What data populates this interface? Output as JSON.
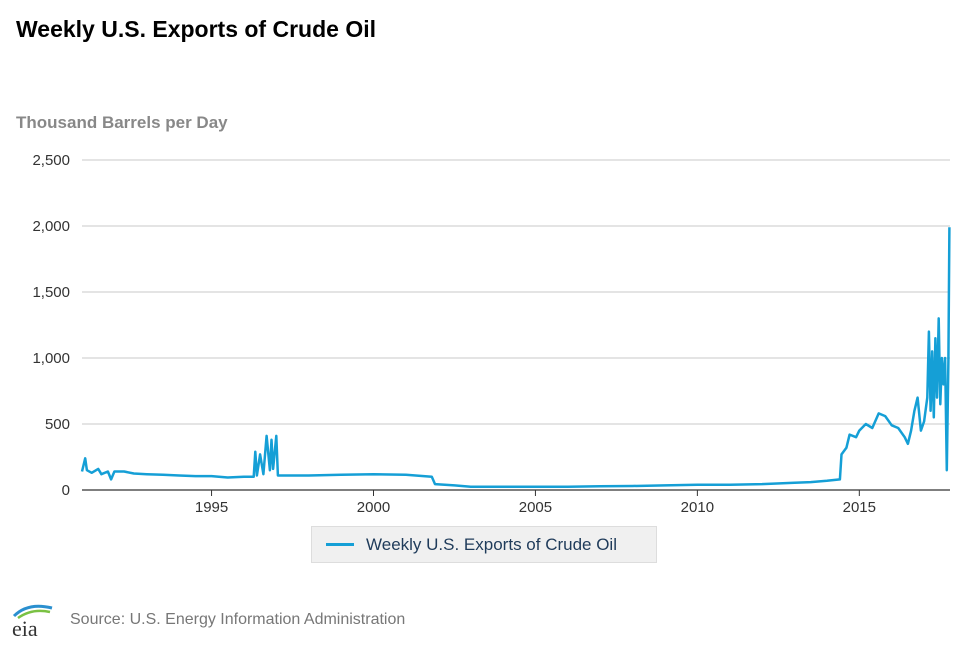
{
  "title": "Weekly U.S. Exports of Crude Oil",
  "ylabel": "Thousand Barrels per Day",
  "source": "Source: U.S. Energy Information Administration",
  "logo_text": "eia",
  "colors": {
    "series": "#159fd6",
    "grid": "#c8c8c8",
    "axis": "#333333"
  },
  "chart_data": {
    "type": "line",
    "title": "Weekly U.S. Exports of Crude Oil",
    "ylabel": "Thousand Barrels per Day",
    "xlabel": "",
    "xlim": [
      1991.0,
      2017.8
    ],
    "ylim": [
      0,
      2500
    ],
    "yticks": [
      0,
      500,
      1000,
      1500,
      2000,
      2500
    ],
    "ytick_labels": [
      "0",
      "500",
      "1,000",
      "1,500",
      "2,000",
      "2,500"
    ],
    "xticks": [
      1995,
      2000,
      2005,
      2010,
      2015
    ],
    "xtick_labels": [
      "1995",
      "2000",
      "2005",
      "2010",
      "2015"
    ],
    "grid": true,
    "legend": "bottom-center",
    "series": [
      {
        "name": "Weekly U.S. Exports of Crude Oil",
        "points": [
          [
            1991.0,
            140
          ],
          [
            1991.1,
            240
          ],
          [
            1991.15,
            150
          ],
          [
            1991.3,
            130
          ],
          [
            1991.5,
            160
          ],
          [
            1991.6,
            120
          ],
          [
            1991.8,
            140
          ],
          [
            1991.9,
            80
          ],
          [
            1992.0,
            140
          ],
          [
            1992.3,
            140
          ],
          [
            1992.6,
            125
          ],
          [
            1993.0,
            120
          ],
          [
            1993.5,
            115
          ],
          [
            1994.0,
            110
          ],
          [
            1994.5,
            105
          ],
          [
            1995.0,
            105
          ],
          [
            1995.5,
            95
          ],
          [
            1996.0,
            100
          ],
          [
            1996.3,
            100
          ],
          [
            1996.35,
            290
          ],
          [
            1996.4,
            110
          ],
          [
            1996.5,
            270
          ],
          [
            1996.6,
            120
          ],
          [
            1996.7,
            410
          ],
          [
            1996.8,
            150
          ],
          [
            1996.85,
            380
          ],
          [
            1996.9,
            160
          ],
          [
            1997.0,
            410
          ],
          [
            1997.05,
            110
          ],
          [
            1997.5,
            110
          ],
          [
            1998.0,
            110
          ],
          [
            1999.0,
            115
          ],
          [
            2000.0,
            120
          ],
          [
            2001.0,
            115
          ],
          [
            2001.8,
            100
          ],
          [
            2001.9,
            45
          ],
          [
            2002.5,
            35
          ],
          [
            2003.0,
            25
          ],
          [
            2004.0,
            25
          ],
          [
            2005.0,
            25
          ],
          [
            2006.0,
            25
          ],
          [
            2007.0,
            28
          ],
          [
            2008.0,
            30
          ],
          [
            2009.0,
            35
          ],
          [
            2010.0,
            40
          ],
          [
            2011.0,
            40
          ],
          [
            2012.0,
            45
          ],
          [
            2013.0,
            55
          ],
          [
            2013.5,
            60
          ],
          [
            2014.0,
            70
          ],
          [
            2014.4,
            80
          ],
          [
            2014.45,
            270
          ],
          [
            2014.6,
            320
          ],
          [
            2014.7,
            420
          ],
          [
            2014.9,
            400
          ],
          [
            2015.0,
            450
          ],
          [
            2015.2,
            500
          ],
          [
            2015.4,
            470
          ],
          [
            2015.6,
            580
          ],
          [
            2015.8,
            560
          ],
          [
            2016.0,
            490
          ],
          [
            2016.2,
            470
          ],
          [
            2016.4,
            400
          ],
          [
            2016.5,
            350
          ],
          [
            2016.6,
            450
          ],
          [
            2016.7,
            600
          ],
          [
            2016.8,
            700
          ],
          [
            2016.9,
            450
          ],
          [
            2017.0,
            520
          ],
          [
            2017.1,
            700
          ],
          [
            2017.15,
            1200
          ],
          [
            2017.2,
            600
          ],
          [
            2017.25,
            1050
          ],
          [
            2017.3,
            550
          ],
          [
            2017.35,
            1150
          ],
          [
            2017.4,
            700
          ],
          [
            2017.45,
            1300
          ],
          [
            2017.5,
            650
          ],
          [
            2017.55,
            1000
          ],
          [
            2017.6,
            800
          ],
          [
            2017.65,
            1000
          ],
          [
            2017.7,
            150
          ],
          [
            2017.75,
            980
          ],
          [
            2017.78,
            1990
          ]
        ]
      }
    ]
  }
}
